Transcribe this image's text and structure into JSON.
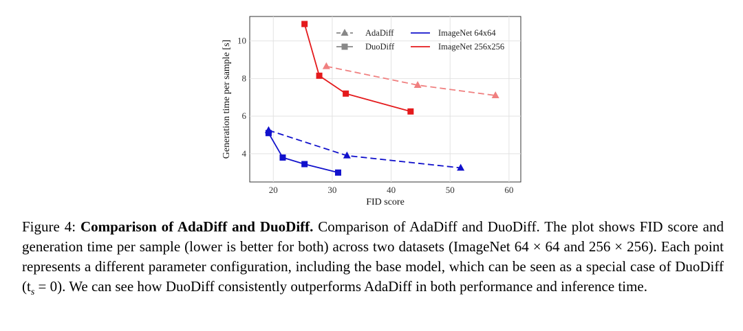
{
  "chart_data": {
    "type": "line",
    "xlabel": "FID score",
    "ylabel": "Generation time per sample [s]",
    "xlim": [
      16,
      62
    ],
    "ylim": [
      2.5,
      11.3
    ],
    "xticks": [
      20,
      30,
      40,
      50,
      60
    ],
    "yticks": [
      4,
      6,
      8,
      10
    ],
    "grid": true,
    "legend": {
      "method_entries": [
        {
          "label": "AdaDiff",
          "style": "dashed-triangle"
        },
        {
          "label": "DuoDiff",
          "style": "solid-square"
        }
      ],
      "dataset_entries": [
        {
          "label": "ImageNet 64x64",
          "color": "#1111cc"
        },
        {
          "label": "ImageNet 256x256",
          "color": "#e41a1c"
        }
      ]
    },
    "series": [
      {
        "name": "AdaDiff ImageNet 64x64",
        "method": "AdaDiff",
        "dataset": "ImageNet 64x64",
        "color": "#1111cc",
        "dash": true,
        "marker": "triangle",
        "points": [
          [
            19.2,
            5.25
          ],
          [
            32.5,
            3.9
          ],
          [
            51.8,
            3.25
          ]
        ]
      },
      {
        "name": "DuoDiff ImageNet 64x64",
        "method": "DuoDiff",
        "dataset": "ImageNet 64x64",
        "color": "#1111cc",
        "dash": false,
        "marker": "square",
        "points": [
          [
            19.2,
            5.1
          ],
          [
            21.6,
            3.8
          ],
          [
            25.3,
            3.45
          ],
          [
            31.0,
            3.0
          ]
        ]
      },
      {
        "name": "AdaDiff ImageNet 256x256",
        "method": "AdaDiff",
        "dataset": "ImageNet 256x256",
        "color": "#f08080",
        "dash": true,
        "marker": "triangle",
        "points": [
          [
            29.0,
            8.65
          ],
          [
            44.5,
            7.65
          ],
          [
            57.7,
            7.1
          ]
        ]
      },
      {
        "name": "DuoDiff ImageNet 256x256",
        "method": "DuoDiff",
        "dataset": "ImageNet 256x256",
        "color": "#e41a1c",
        "dash": false,
        "marker": "square",
        "points": [
          [
            25.3,
            10.9
          ],
          [
            27.8,
            8.15
          ],
          [
            32.3,
            7.2
          ],
          [
            43.3,
            6.25
          ]
        ]
      }
    ]
  },
  "caption": {
    "label": "Figure 4: ",
    "bold": "Comparison of AdaDiff and DuoDiff.",
    "text": " Comparison of AdaDiff and DuoDiff. The plot shows FID score and generation time per sample (lower is better for both) across two datasets (ImageNet 64 × 64 and 256 × 256). Each point represents a different parameter configuration, including the base model, which can be seen as a special case of DuoDiff (t",
    "subscript": "s",
    "text_after": " = 0). We can see how DuoDiff consistently outperforms AdaDiff in both performance and inference time."
  }
}
